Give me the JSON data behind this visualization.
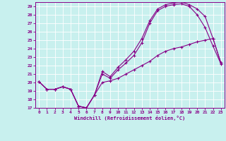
{
  "xlabel": "Windchill (Refroidissement éolien,°C)",
  "bg_color": "#c8f0ee",
  "line_color": "#880088",
  "grid_color": "#ffffff",
  "xlim": [
    -0.5,
    23.5
  ],
  "ylim": [
    17,
    29.5
  ],
  "xtick_vals": [
    0,
    1,
    2,
    3,
    4,
    5,
    6,
    7,
    8,
    9,
    10,
    11,
    12,
    13,
    14,
    15,
    16,
    17,
    18,
    19,
    20,
    21,
    22,
    23
  ],
  "ytick_vals": [
    17,
    18,
    19,
    20,
    21,
    22,
    23,
    24,
    25,
    26,
    27,
    28,
    29
  ],
  "line1": {
    "x": [
      0,
      1,
      2,
      3,
      4,
      5,
      6,
      7,
      8,
      9,
      10,
      11,
      12,
      13,
      14,
      15,
      16,
      17,
      18,
      19,
      20,
      21,
      22,
      23
    ],
    "y": [
      20.1,
      19.2,
      19.2,
      19.5,
      19.2,
      17.2,
      17.0,
      18.5,
      21.0,
      20.5,
      21.5,
      22.3,
      23.2,
      24.7,
      27.0,
      28.5,
      29.0,
      29.2,
      29.3,
      29.0,
      28.0,
      26.5,
      24.3,
      22.2
    ]
  },
  "line2": {
    "x": [
      0,
      1,
      2,
      3,
      4,
      5,
      6,
      7,
      8,
      9,
      10,
      11,
      12,
      13,
      14,
      15,
      16,
      17,
      18,
      19,
      20,
      21,
      22,
      23
    ],
    "y": [
      20.1,
      19.2,
      19.2,
      19.5,
      19.2,
      17.2,
      17.0,
      18.5,
      21.3,
      20.7,
      21.8,
      22.7,
      23.7,
      25.2,
      27.3,
      28.7,
      29.2,
      29.4,
      29.5,
      29.2,
      28.7,
      27.8,
      25.2,
      22.3
    ]
  },
  "line3": {
    "x": [
      0,
      1,
      2,
      3,
      4,
      5,
      6,
      7,
      8,
      9,
      10,
      11,
      12,
      13,
      14,
      15,
      16,
      17,
      18,
      19,
      20,
      21,
      22,
      23
    ],
    "y": [
      20.1,
      19.2,
      19.2,
      19.5,
      19.2,
      17.2,
      17.0,
      18.5,
      20.0,
      20.2,
      20.5,
      21.0,
      21.5,
      22.0,
      22.5,
      23.2,
      23.7,
      24.0,
      24.2,
      24.5,
      24.8,
      25.0,
      25.2,
      22.3
    ]
  }
}
